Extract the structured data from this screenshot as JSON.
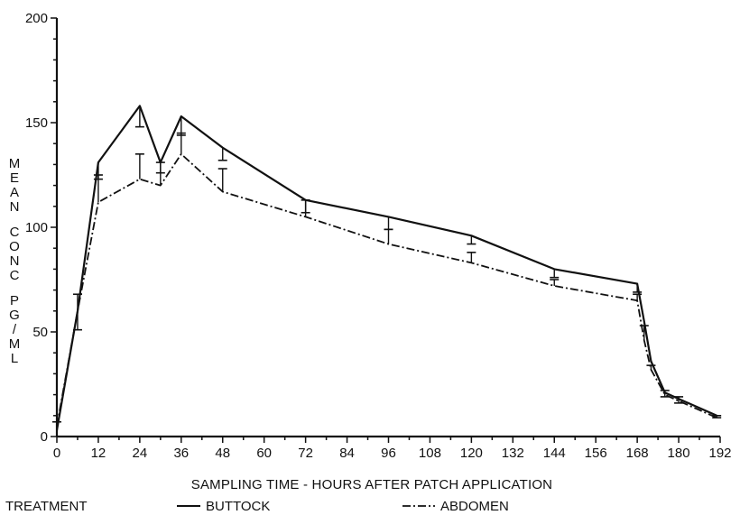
{
  "chart_data": {
    "type": "line",
    "title": "",
    "xlabel": "SAMPLING TIME - HOURS AFTER PATCH APPLICATION",
    "ylabel": "MEAN CONC PG/ML",
    "xlim": [
      0,
      192
    ],
    "ylim": [
      0,
      200
    ],
    "x_ticks": [
      0,
      12,
      24,
      36,
      48,
      60,
      72,
      84,
      96,
      108,
      120,
      132,
      144,
      156,
      168,
      180,
      192
    ],
    "y_ticks": [
      0,
      50,
      100,
      150,
      200
    ],
    "grid": false,
    "legend": {
      "title": "TREATMENT",
      "placement": "bottom",
      "entries": [
        "BUTTOCK",
        "ABDOMEN"
      ]
    },
    "series": [
      {
        "name": "BUTTOCK",
        "style": "solid",
        "points": [
          {
            "x": 0,
            "y": 3,
            "err": 0
          },
          {
            "x": 6,
            "y": 60,
            "err": 9
          },
          {
            "x": 12,
            "y": 131,
            "err": 8
          },
          {
            "x": 24,
            "y": 158,
            "err": 10
          },
          {
            "x": 30,
            "y": 131,
            "err": 5
          },
          {
            "x": 36,
            "y": 153,
            "err": 9
          },
          {
            "x": 48,
            "y": 138,
            "err": 6
          },
          {
            "x": 72,
            "y": 113,
            "err": 6
          },
          {
            "x": 96,
            "y": 105,
            "err": 6
          },
          {
            "x": 120,
            "y": 96,
            "err": 4
          },
          {
            "x": 144,
            "y": 80,
            "err": 4
          },
          {
            "x": 168,
            "y": 73,
            "err": 4
          },
          {
            "x": 170,
            "y": 55,
            "err": 0
          },
          {
            "x": 172,
            "y": 36,
            "err": 0
          },
          {
            "x": 176,
            "y": 21,
            "err": 2
          },
          {
            "x": 180,
            "y": 18,
            "err": 2
          },
          {
            "x": 191,
            "y": 10,
            "err": 1
          }
        ]
      },
      {
        "name": "ABDOMEN",
        "style": "dash-dot",
        "points": [
          {
            "x": 0,
            "y": 5,
            "err": 2
          },
          {
            "x": 6,
            "y": 60,
            "err": 8
          },
          {
            "x": 12,
            "y": 112,
            "err": 13
          },
          {
            "x": 24,
            "y": 123,
            "err": 12
          },
          {
            "x": 30,
            "y": 120,
            "err": 11
          },
          {
            "x": 36,
            "y": 135,
            "err": 10
          },
          {
            "x": 48,
            "y": 117,
            "err": 11
          },
          {
            "x": 72,
            "y": 105,
            "err": 8
          },
          {
            "x": 96,
            "y": 92,
            "err": 7
          },
          {
            "x": 120,
            "y": 83,
            "err": 5
          },
          {
            "x": 144,
            "y": 72,
            "err": 3
          },
          {
            "x": 168,
            "y": 65,
            "err": 3
          },
          {
            "x": 170,
            "y": 46,
            "err": 7
          },
          {
            "x": 172,
            "y": 32,
            "err": 2
          },
          {
            "x": 176,
            "y": 20,
            "err": 2
          },
          {
            "x": 180,
            "y": 17,
            "err": 2
          },
          {
            "x": 191,
            "y": 9,
            "err": 1
          }
        ]
      }
    ]
  }
}
